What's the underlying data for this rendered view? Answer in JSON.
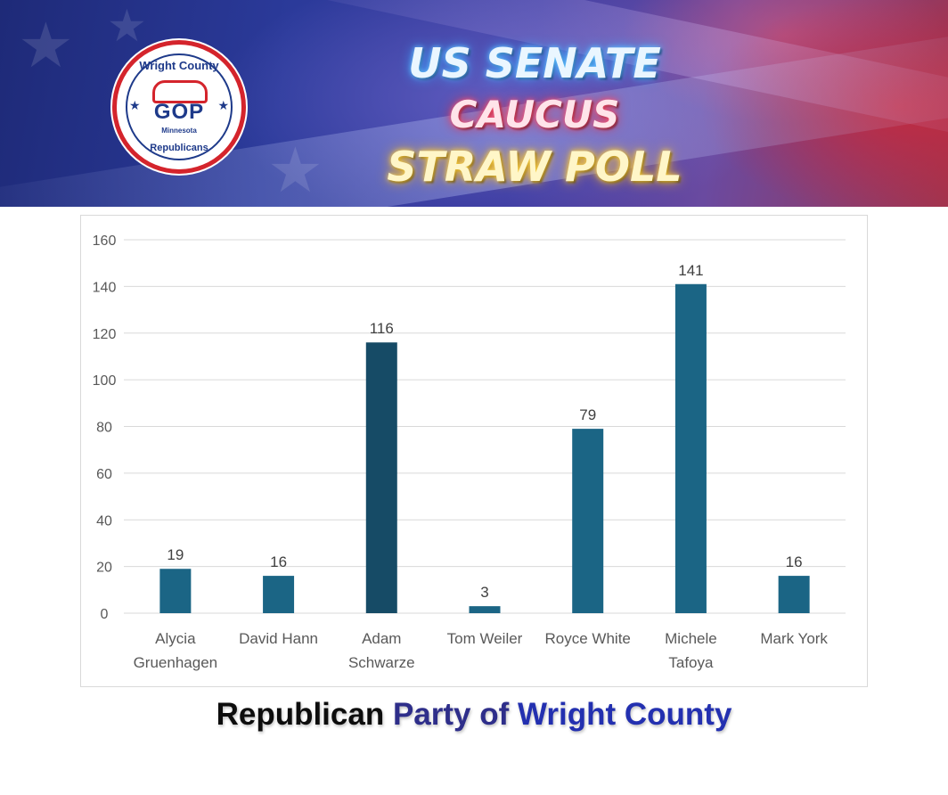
{
  "banner": {
    "title_line1": "US SENATE",
    "title_line2": "CAUCUS",
    "title_line3": "STRAW POLL",
    "logo": {
      "top_text": "Wright County",
      "center_text": "GOP",
      "state_text": "Minnesota",
      "bottom_text": "Republicans"
    }
  },
  "footer": {
    "part1": "Republican",
    "part2": "Party of",
    "part3": "Wright County"
  },
  "colors": {
    "bar": "#1b6585",
    "bar_highlight": "#164b66",
    "grid": "#d9d9d9",
    "axis_text": "#595959"
  },
  "chart_data": {
    "type": "bar",
    "categories": [
      [
        "Alycia",
        "Gruenhagen"
      ],
      [
        "David Hann"
      ],
      [
        "Adam",
        "Schwarze"
      ],
      [
        "Tom Weiler"
      ],
      [
        "Royce White"
      ],
      [
        "Michele",
        "Tafoya"
      ],
      [
        "Mark York"
      ]
    ],
    "values": [
      19,
      16,
      116,
      3,
      79,
      141,
      16
    ],
    "data_labels": [
      "19",
      "16",
      "116",
      "3",
      "79",
      "141",
      "16"
    ],
    "highlight_index": 2,
    "yticks": [
      0,
      20,
      40,
      60,
      80,
      100,
      120,
      140,
      160
    ],
    "ylim": [
      0,
      160
    ],
    "grid": true,
    "title": "",
    "xlabel": "",
    "ylabel": ""
  }
}
